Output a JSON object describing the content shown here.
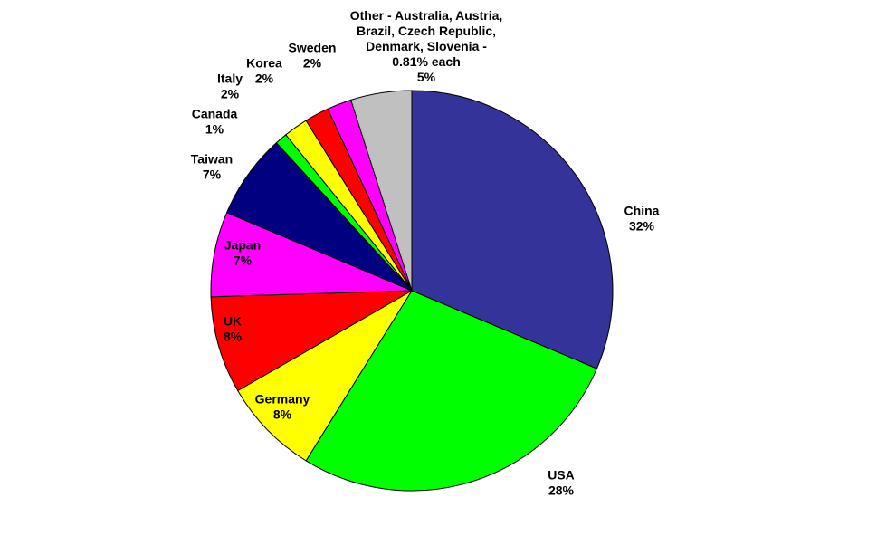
{
  "chart_data": {
    "type": "pie",
    "title": "",
    "slices": [
      {
        "name": "China",
        "value": 32,
        "pct_label": "32%",
        "color": "#333399"
      },
      {
        "name": "USA",
        "value": 28,
        "pct_label": "28%",
        "color": "#00ff00"
      },
      {
        "name": "Germany",
        "value": 8,
        "pct_label": "8%",
        "color": "#ffff00"
      },
      {
        "name": "UK",
        "value": 8,
        "pct_label": "8%",
        "color": "#ff0000"
      },
      {
        "name": "Japan",
        "value": 7,
        "pct_label": "7%",
        "color": "#ff00ff"
      },
      {
        "name": "Taiwan",
        "value": 7,
        "pct_label": "7%",
        "color": "#000080"
      },
      {
        "name": "Canada",
        "value": 1,
        "pct_label": "1%",
        "color": "#00ff00"
      },
      {
        "name": "Italy",
        "value": 2,
        "pct_label": "2%",
        "color": "#ffff00"
      },
      {
        "name": "Korea",
        "value": 2,
        "pct_label": "2%",
        "color": "#ff0000"
      },
      {
        "name": "Sweden",
        "value": 2,
        "pct_label": "2%",
        "color": "#ff00ff"
      },
      {
        "name": "Other - Australia, Austria, Brazil, Czech Republic, Denmark, Slovenia - 0.81% each",
        "value": 5,
        "pct_label": "5%",
        "color": "#c0c0c0"
      }
    ]
  },
  "labels": [
    {
      "lines": [
        "China",
        "32%"
      ]
    },
    {
      "lines": [
        "USA",
        "28%"
      ]
    },
    {
      "lines": [
        "Germany",
        "8%"
      ]
    },
    {
      "lines": [
        "UK",
        "8%"
      ]
    },
    {
      "lines": [
        "Japan",
        "7%"
      ]
    },
    {
      "lines": [
        "Taiwan",
        "7%"
      ]
    },
    {
      "lines": [
        "Canada",
        "1%"
      ]
    },
    {
      "lines": [
        "Italy",
        "2%"
      ]
    },
    {
      "lines": [
        "Korea",
        "2%"
      ]
    },
    {
      "lines": [
        "Sweden",
        "2%"
      ]
    },
    {
      "lines": [
        "Other - Australia, Austria,",
        "Brazil, Czech Republic,",
        "Denmark, Slovenia -",
        "0.81% each",
        "5%"
      ]
    }
  ]
}
